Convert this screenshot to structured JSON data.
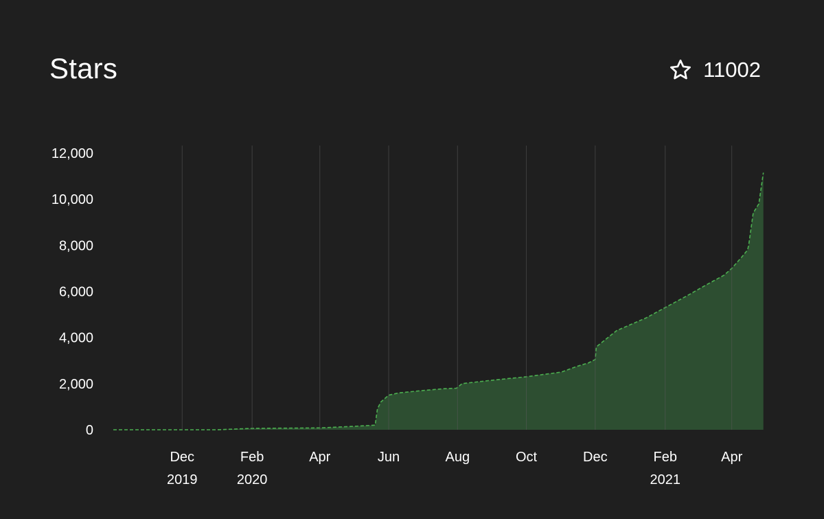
{
  "header": {
    "title": "Stars",
    "star_icon": "star-outline-icon",
    "star_count": "11002"
  },
  "colors": {
    "background": "#1f1f1f",
    "line": "#4caf50",
    "fill": "#2d4e31",
    "grid": "#5a5a5a",
    "text": "#ffffff"
  },
  "chart_data": {
    "type": "area",
    "x_type": "date",
    "xlim": [
      "2019-10-01",
      "2021-05-01"
    ],
    "ylim": [
      0,
      12000
    ],
    "y_ticks": [
      0,
      2000,
      4000,
      6000,
      8000,
      10000,
      12000
    ],
    "y_tick_labels": [
      "0",
      "2,000",
      "4,000",
      "6,000",
      "8,000",
      "10,000",
      "12,000"
    ],
    "x_ticks": [
      {
        "date": "2019-12-01",
        "label": "Dec",
        "year": "2019"
      },
      {
        "date": "2020-02-01",
        "label": "Feb",
        "year": "2020"
      },
      {
        "date": "2020-04-01",
        "label": "Apr",
        "year": ""
      },
      {
        "date": "2020-06-01",
        "label": "Jun",
        "year": ""
      },
      {
        "date": "2020-08-01",
        "label": "Aug",
        "year": ""
      },
      {
        "date": "2020-10-01",
        "label": "Oct",
        "year": ""
      },
      {
        "date": "2020-12-01",
        "label": "Dec",
        "year": ""
      },
      {
        "date": "2021-02-01",
        "label": "Feb",
        "year": "2021"
      },
      {
        "date": "2021-04-01",
        "label": "Apr",
        "year": ""
      }
    ],
    "grid": "vertical",
    "line_style": "dashed",
    "x": [
      "2019-10-01",
      "2020-01-01",
      "2020-02-01",
      "2020-04-01",
      "2020-05-01",
      "2020-05-20",
      "2020-05-22",
      "2020-05-25",
      "2020-06-01",
      "2020-06-10",
      "2020-07-01",
      "2020-07-20",
      "2020-07-31",
      "2020-08-05",
      "2020-09-01",
      "2020-10-01",
      "2020-11-01",
      "2020-11-15",
      "2020-11-25",
      "2020-12-01",
      "2020-12-02",
      "2020-12-20",
      "2021-01-15",
      "2021-02-01",
      "2021-02-20",
      "2021-03-10",
      "2021-03-25",
      "2021-04-01",
      "2021-04-10",
      "2021-04-15",
      "2021-04-16",
      "2021-04-20",
      "2021-04-25",
      "2021-04-29"
    ],
    "y": [
      0,
      0,
      60,
      80,
      150,
      200,
      900,
      1200,
      1500,
      1600,
      1700,
      1780,
      1800,
      2000,
      2150,
      2300,
      2500,
      2750,
      2900,
      3050,
      3600,
      4300,
      4850,
      5300,
      5800,
      6300,
      6700,
      7000,
      7500,
      7800,
      8000,
      9400,
      9800,
      11150
    ]
  }
}
